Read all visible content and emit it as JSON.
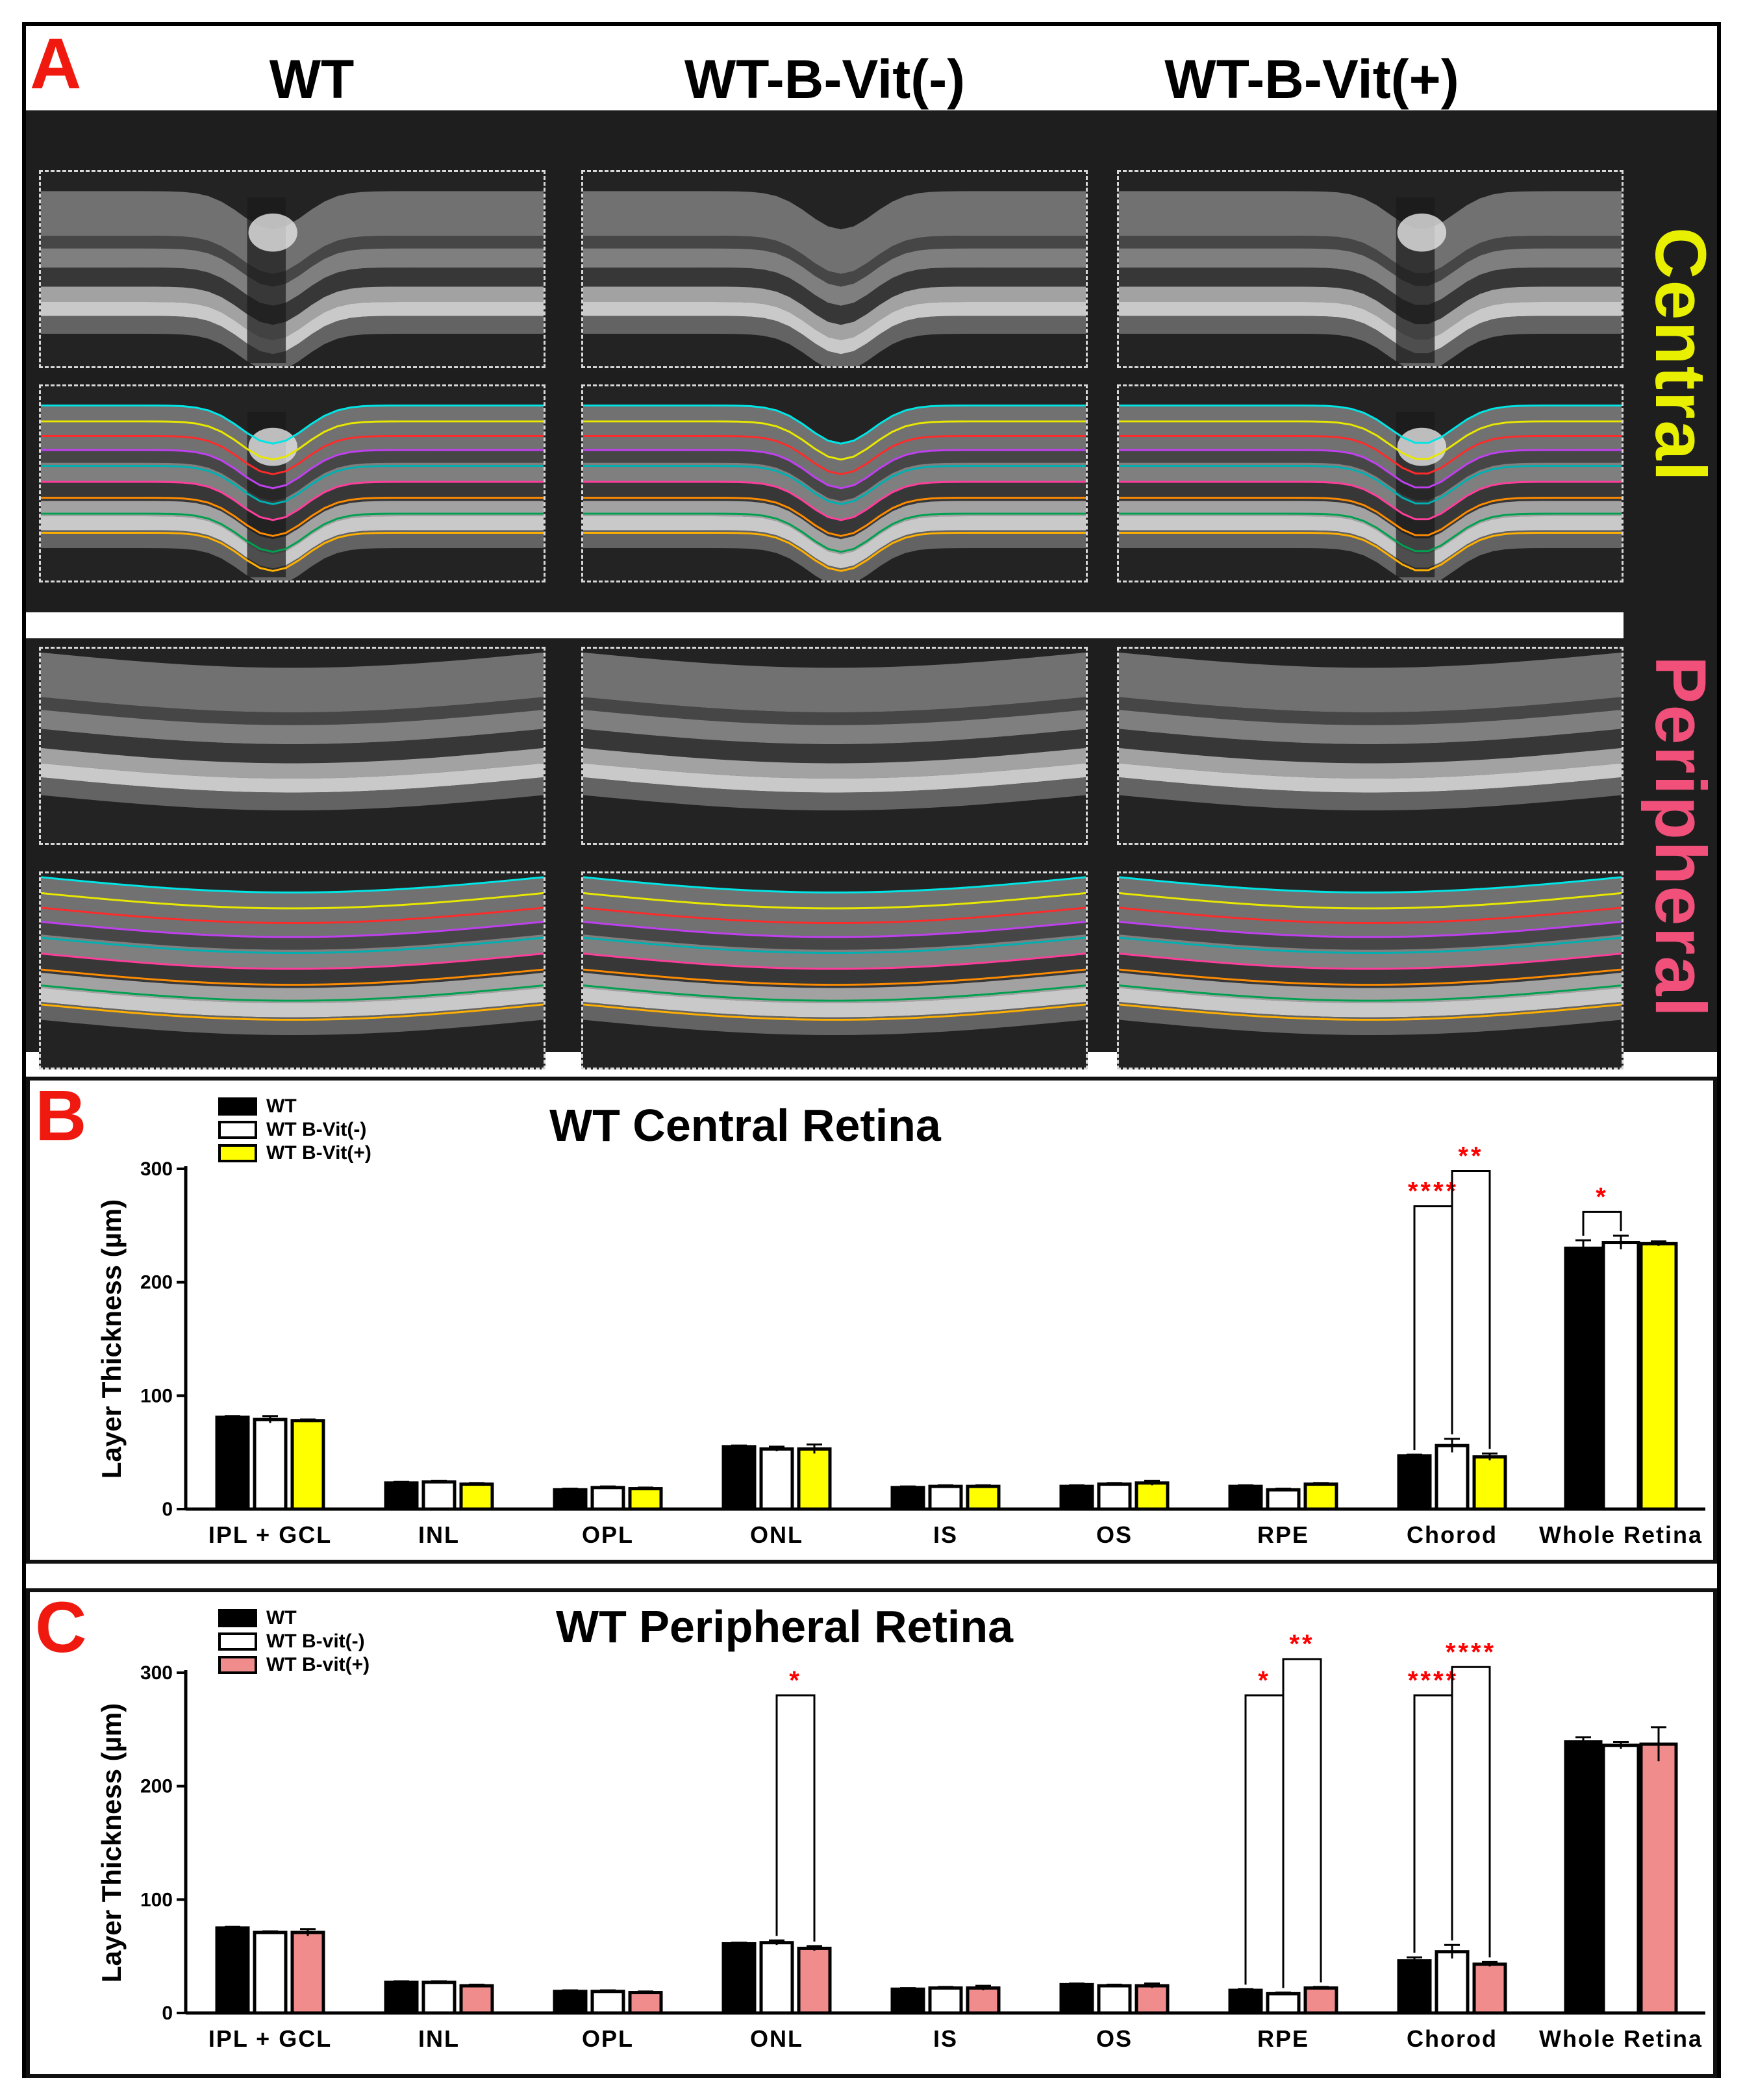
{
  "panelA": {
    "letter": "A",
    "columns": [
      "WT",
      "WT-B-Vit(-)",
      "WT-B-Vit(+)"
    ],
    "region_labels": {
      "central": "Central",
      "peripheral": "Peripheral"
    },
    "colors": {
      "central": "#e8f000",
      "peripheral": "#f0507a"
    },
    "segmentation_line_colors": [
      "#00e5e5",
      "#e8e800",
      "#ff2a2a",
      "#c040f0",
      "#00b0b0",
      "#ff3e9c",
      "#ff8c00",
      "#00a050",
      "#ffb000"
    ]
  },
  "panelB": {
    "letter": "B"
  },
  "panelC": {
    "letter": "C"
  },
  "chart_data": [
    {
      "type": "bar",
      "title": "WT Central Retina",
      "xlabel": "",
      "ylabel": "Layer Thickness (µm)",
      "ylim": [
        0,
        300
      ],
      "yticks": [
        "0",
        "100",
        "200",
        "300"
      ],
      "categories": [
        "IPL + GCL",
        "INL",
        "OPL",
        "ONL",
        "IS",
        "OS",
        "RPE",
        "Chorod",
        "Whole Retina"
      ],
      "series": [
        {
          "name": "WT",
          "color": "#000000",
          "values": [
            81,
            23,
            17,
            55,
            19,
            20,
            20,
            47,
            230
          ],
          "errors": [
            1,
            1,
            1,
            1,
            1,
            1,
            1,
            1,
            7
          ]
        },
        {
          "name": "WT B-Vit(-)",
          "color": "#ffffff",
          "values": [
            79,
            24,
            19,
            53,
            20,
            22,
            17,
            56,
            235
          ],
          "errors": [
            3,
            1,
            1,
            2,
            1,
            1,
            1,
            6,
            6
          ]
        },
        {
          "name": "WT B-Vit(+)",
          "color": "#ffff00",
          "values": [
            78,
            22,
            18,
            53,
            20,
            23,
            22,
            46,
            234
          ],
          "errors": [
            1,
            1,
            1,
            4,
            1,
            2,
            1,
            3,
            2
          ]
        }
      ],
      "significance": [
        {
          "category": "Chorod",
          "from": "WT",
          "to": "WT B-Vit(-)",
          "label": "****",
          "level": 267
        },
        {
          "category": "Chorod",
          "from": "WT B-Vit(-)",
          "to": "WT B-Vit(+)",
          "label": "**",
          "level": 298
        },
        {
          "category": "Whole Retina",
          "from": "WT",
          "to": "WT B-Vit(-)",
          "label": "*",
          "level": 262
        }
      ]
    },
    {
      "type": "bar",
      "title": "WT Peripheral Retina",
      "xlabel": "",
      "ylabel": "Layer Thickness (µm)",
      "ylim": [
        0,
        300
      ],
      "yticks": [
        "0",
        "100",
        "200",
        "300"
      ],
      "categories": [
        "IPL + GCL",
        "INL",
        "OPL",
        "ONL",
        "IS",
        "OS",
        "RPE",
        "Chorod",
        "Whole Retina"
      ],
      "series": [
        {
          "name": "WT",
          "color": "#000000",
          "values": [
            75,
            27,
            19,
            61,
            21,
            25,
            20,
            46,
            239
          ],
          "errors": [
            1,
            1,
            1,
            1,
            1,
            1,
            1,
            3,
            4
          ]
        },
        {
          "name": "WT B-vit(-)",
          "color": "#ffffff",
          "values": [
            71,
            27,
            19,
            62,
            22,
            24,
            17,
            54,
            236
          ],
          "errors": [
            1,
            1,
            1,
            2,
            1,
            1,
            1,
            6,
            3
          ]
        },
        {
          "name": "WT B-vit(+)",
          "color": "#f08c8c",
          "values": [
            71,
            24,
            18,
            57,
            22,
            24,
            22,
            43,
            237
          ],
          "errors": [
            3,
            1,
            1,
            2,
            2,
            2,
            1,
            2,
            15
          ]
        }
      ],
      "significance": [
        {
          "category": "ONL",
          "from": "WT B-vit(-)",
          "to": "WT B-vit(+)",
          "label": "*",
          "level": 280
        },
        {
          "category": "RPE",
          "from": "WT",
          "to": "WT B-vit(-)",
          "label": "*",
          "level": 280
        },
        {
          "category": "RPE",
          "from": "WT B-vit(-)",
          "to": "WT B-vit(+)",
          "label": "**",
          "level": 312
        },
        {
          "category": "Chorod",
          "from": "WT",
          "to": "WT B-vit(-)",
          "label": "****",
          "level": 280
        },
        {
          "category": "Chorod",
          "from": "WT B-vit(-)",
          "to": "WT B-vit(+)",
          "label": "****",
          "level": 305
        }
      ]
    }
  ]
}
